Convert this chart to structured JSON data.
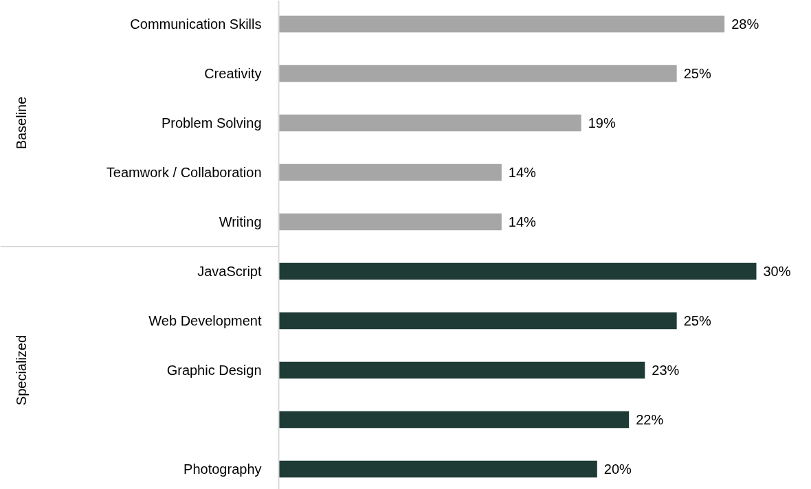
{
  "chart_data": {
    "type": "bar",
    "orientation": "horizontal",
    "categories": [
      "Communication Skills",
      "Creativity",
      "Problem Solving",
      "Teamwork / Collaboration",
      "Writing",
      "JavaScript",
      "Web Development",
      "Graphic Design",
      null,
      "Photography"
    ],
    "annotations": [
      "Baseline",
      "Specialized"
    ],
    "series": [
      {
        "color": "#a6a6a6",
        "values": [
          28,
          25,
          19,
          14,
          14,
          null,
          null,
          null,
          null,
          null
        ],
        "value_labels": [
          "28%",
          "25%",
          "19%",
          "14%",
          "14%",
          null,
          null,
          null,
          null,
          null
        ]
      },
      {
        "color": "#1e3b36",
        "values": [
          null,
          null,
          null,
          null,
          null,
          30,
          25,
          23,
          22,
          20
        ],
        "value_labels": [
          null,
          null,
          null,
          null,
          null,
          "30%",
          "25%",
          "23%",
          "22%",
          "20%"
        ]
      }
    ]
  }
}
